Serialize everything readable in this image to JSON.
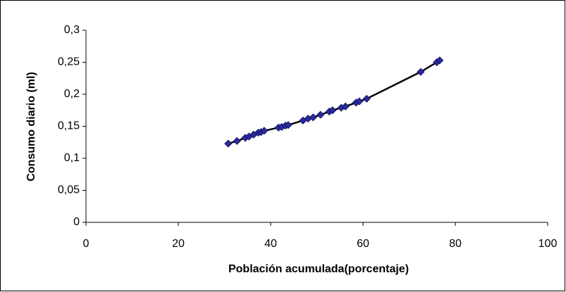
{
  "chart_data": {
    "type": "scatter",
    "x_label": "Población acumulada(porcentaje)",
    "y_label": "Consumo diario (ml)",
    "series": [
      {
        "color": "#2a2a9a",
        "x": [
          30.8,
          32.7,
          34.5,
          35.3,
          36.3,
          37.3,
          37.9,
          38.6,
          41.7,
          42.4,
          43.2,
          43.8,
          47.0,
          48.1,
          49.2,
          50.8,
          52.7,
          53.4,
          55.3,
          56.2,
          58.5,
          59.2,
          60.8,
          72.5,
          76.0,
          76.6
        ],
        "values": [
          0.123,
          0.127,
          0.132,
          0.134,
          0.137,
          0.14,
          0.141,
          0.143,
          0.148,
          0.149,
          0.151,
          0.152,
          0.159,
          0.162,
          0.164,
          0.168,
          0.173,
          0.175,
          0.179,
          0.181,
          0.187,
          0.189,
          0.193,
          0.235,
          0.25,
          0.253
        ]
      }
    ],
    "trendline": true,
    "trendline_color": "#000000",
    "xlim": [
      0,
      100
    ],
    "xticks": [
      0,
      20,
      40,
      60,
      80,
      100
    ],
    "ylim": [
      0,
      0.3
    ],
    "yticks": [
      0,
      {
        "value": 0.05,
        "label": "0,05"
      },
      {
        "value": 0.1,
        "label": "0,1"
      },
      {
        "value": 0.15,
        "label": "0,15"
      },
      {
        "value": 0.2,
        "label": "0,2"
      },
      {
        "value": 0.25,
        "label": "0,25"
      },
      {
        "value": 0.3,
        "label": "0,3"
      }
    ],
    "grid": false
  }
}
